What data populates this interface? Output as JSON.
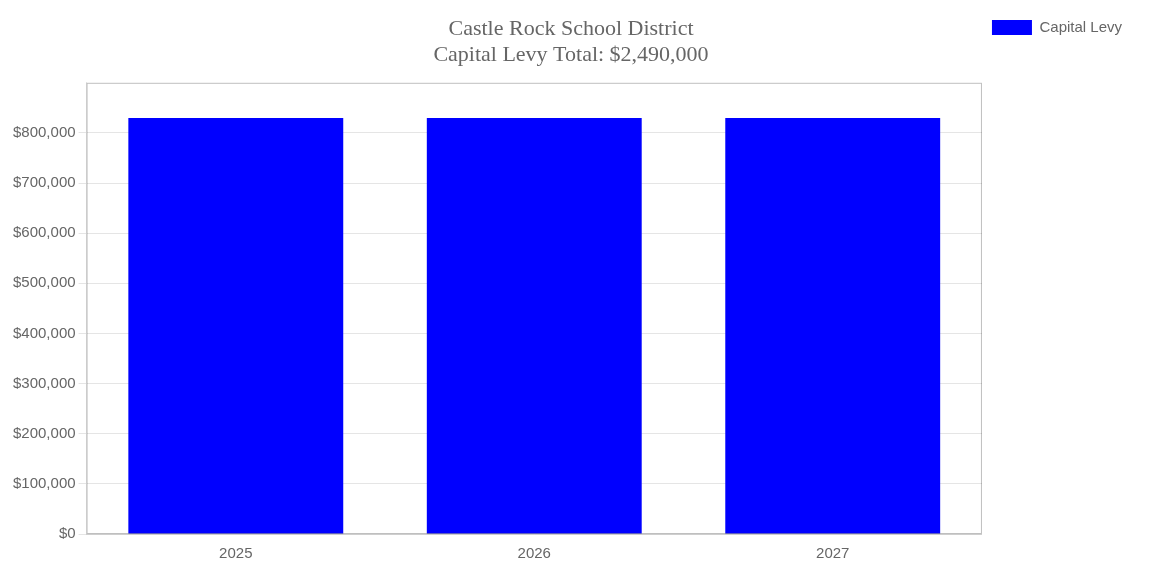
{
  "chart_data": {
    "type": "bar",
    "title": "Castle Rock School District",
    "subtitle": "Capital Levy Total: $2,490,000",
    "categories": [
      "2025",
      "2026",
      "2027"
    ],
    "series": [
      {
        "name": "Capital Levy",
        "color": "#0000ff",
        "values": [
          830000,
          830000,
          830000
        ]
      }
    ],
    "ylim": [
      0,
      900000
    ],
    "yticks": [
      {
        "value": 0,
        "label": "$0"
      },
      {
        "value": 100000,
        "label": "$100,000"
      },
      {
        "value": 200000,
        "label": "$200,000"
      },
      {
        "value": 300000,
        "label": "$300,000"
      },
      {
        "value": 400000,
        "label": "$400,000"
      },
      {
        "value": 500000,
        "label": "$500,000"
      },
      {
        "value": 600000,
        "label": "$600,000"
      },
      {
        "value": 700000,
        "label": "$700,000"
      },
      {
        "value": 800000,
        "label": "$800,000"
      }
    ],
    "grid": true,
    "legend": "right"
  }
}
